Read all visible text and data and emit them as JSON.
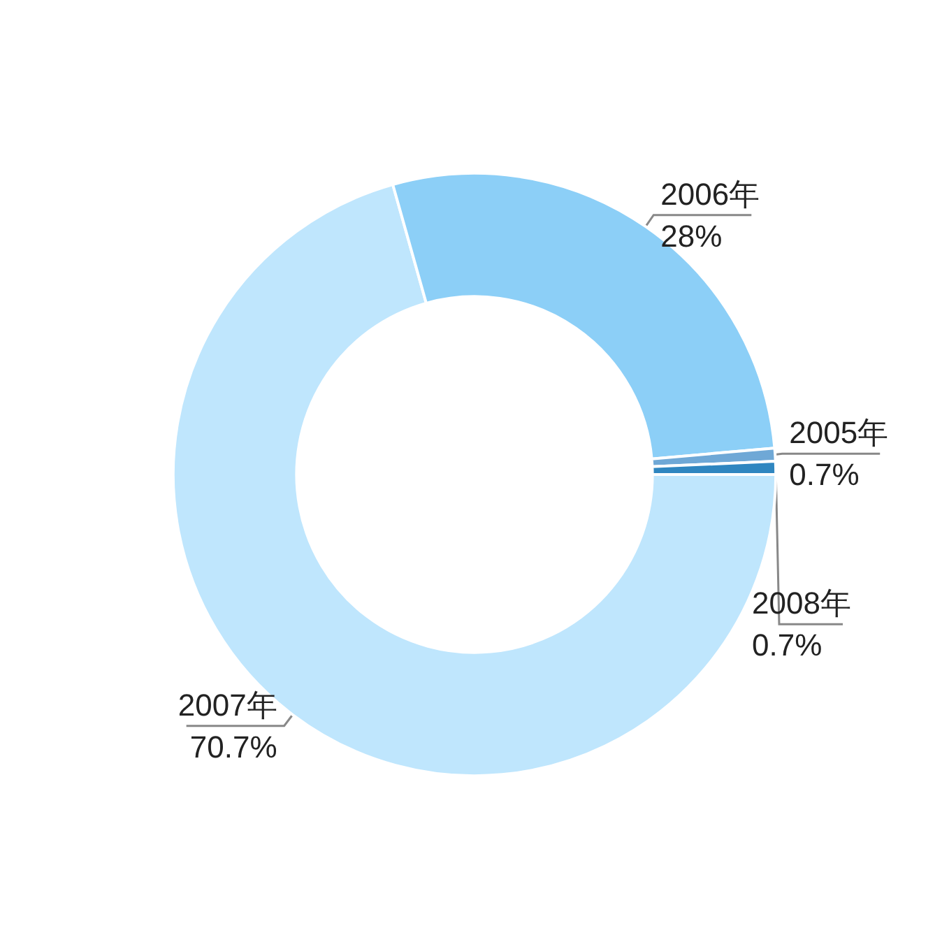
{
  "chart_data": {
    "type": "donut",
    "categories": [
      "2007年",
      "2006年",
      "2005年",
      "2008年"
    ],
    "values": [
      70.7,
      28,
      0.7,
      0.7
    ],
    "value_labels": [
      "70.7%",
      "28%",
      "0.7%",
      "0.7%"
    ],
    "colors": [
      "#bfe6fd",
      "#8ccff7",
      "#6fa8d6",
      "#2f86c0"
    ],
    "legend": false
  }
}
